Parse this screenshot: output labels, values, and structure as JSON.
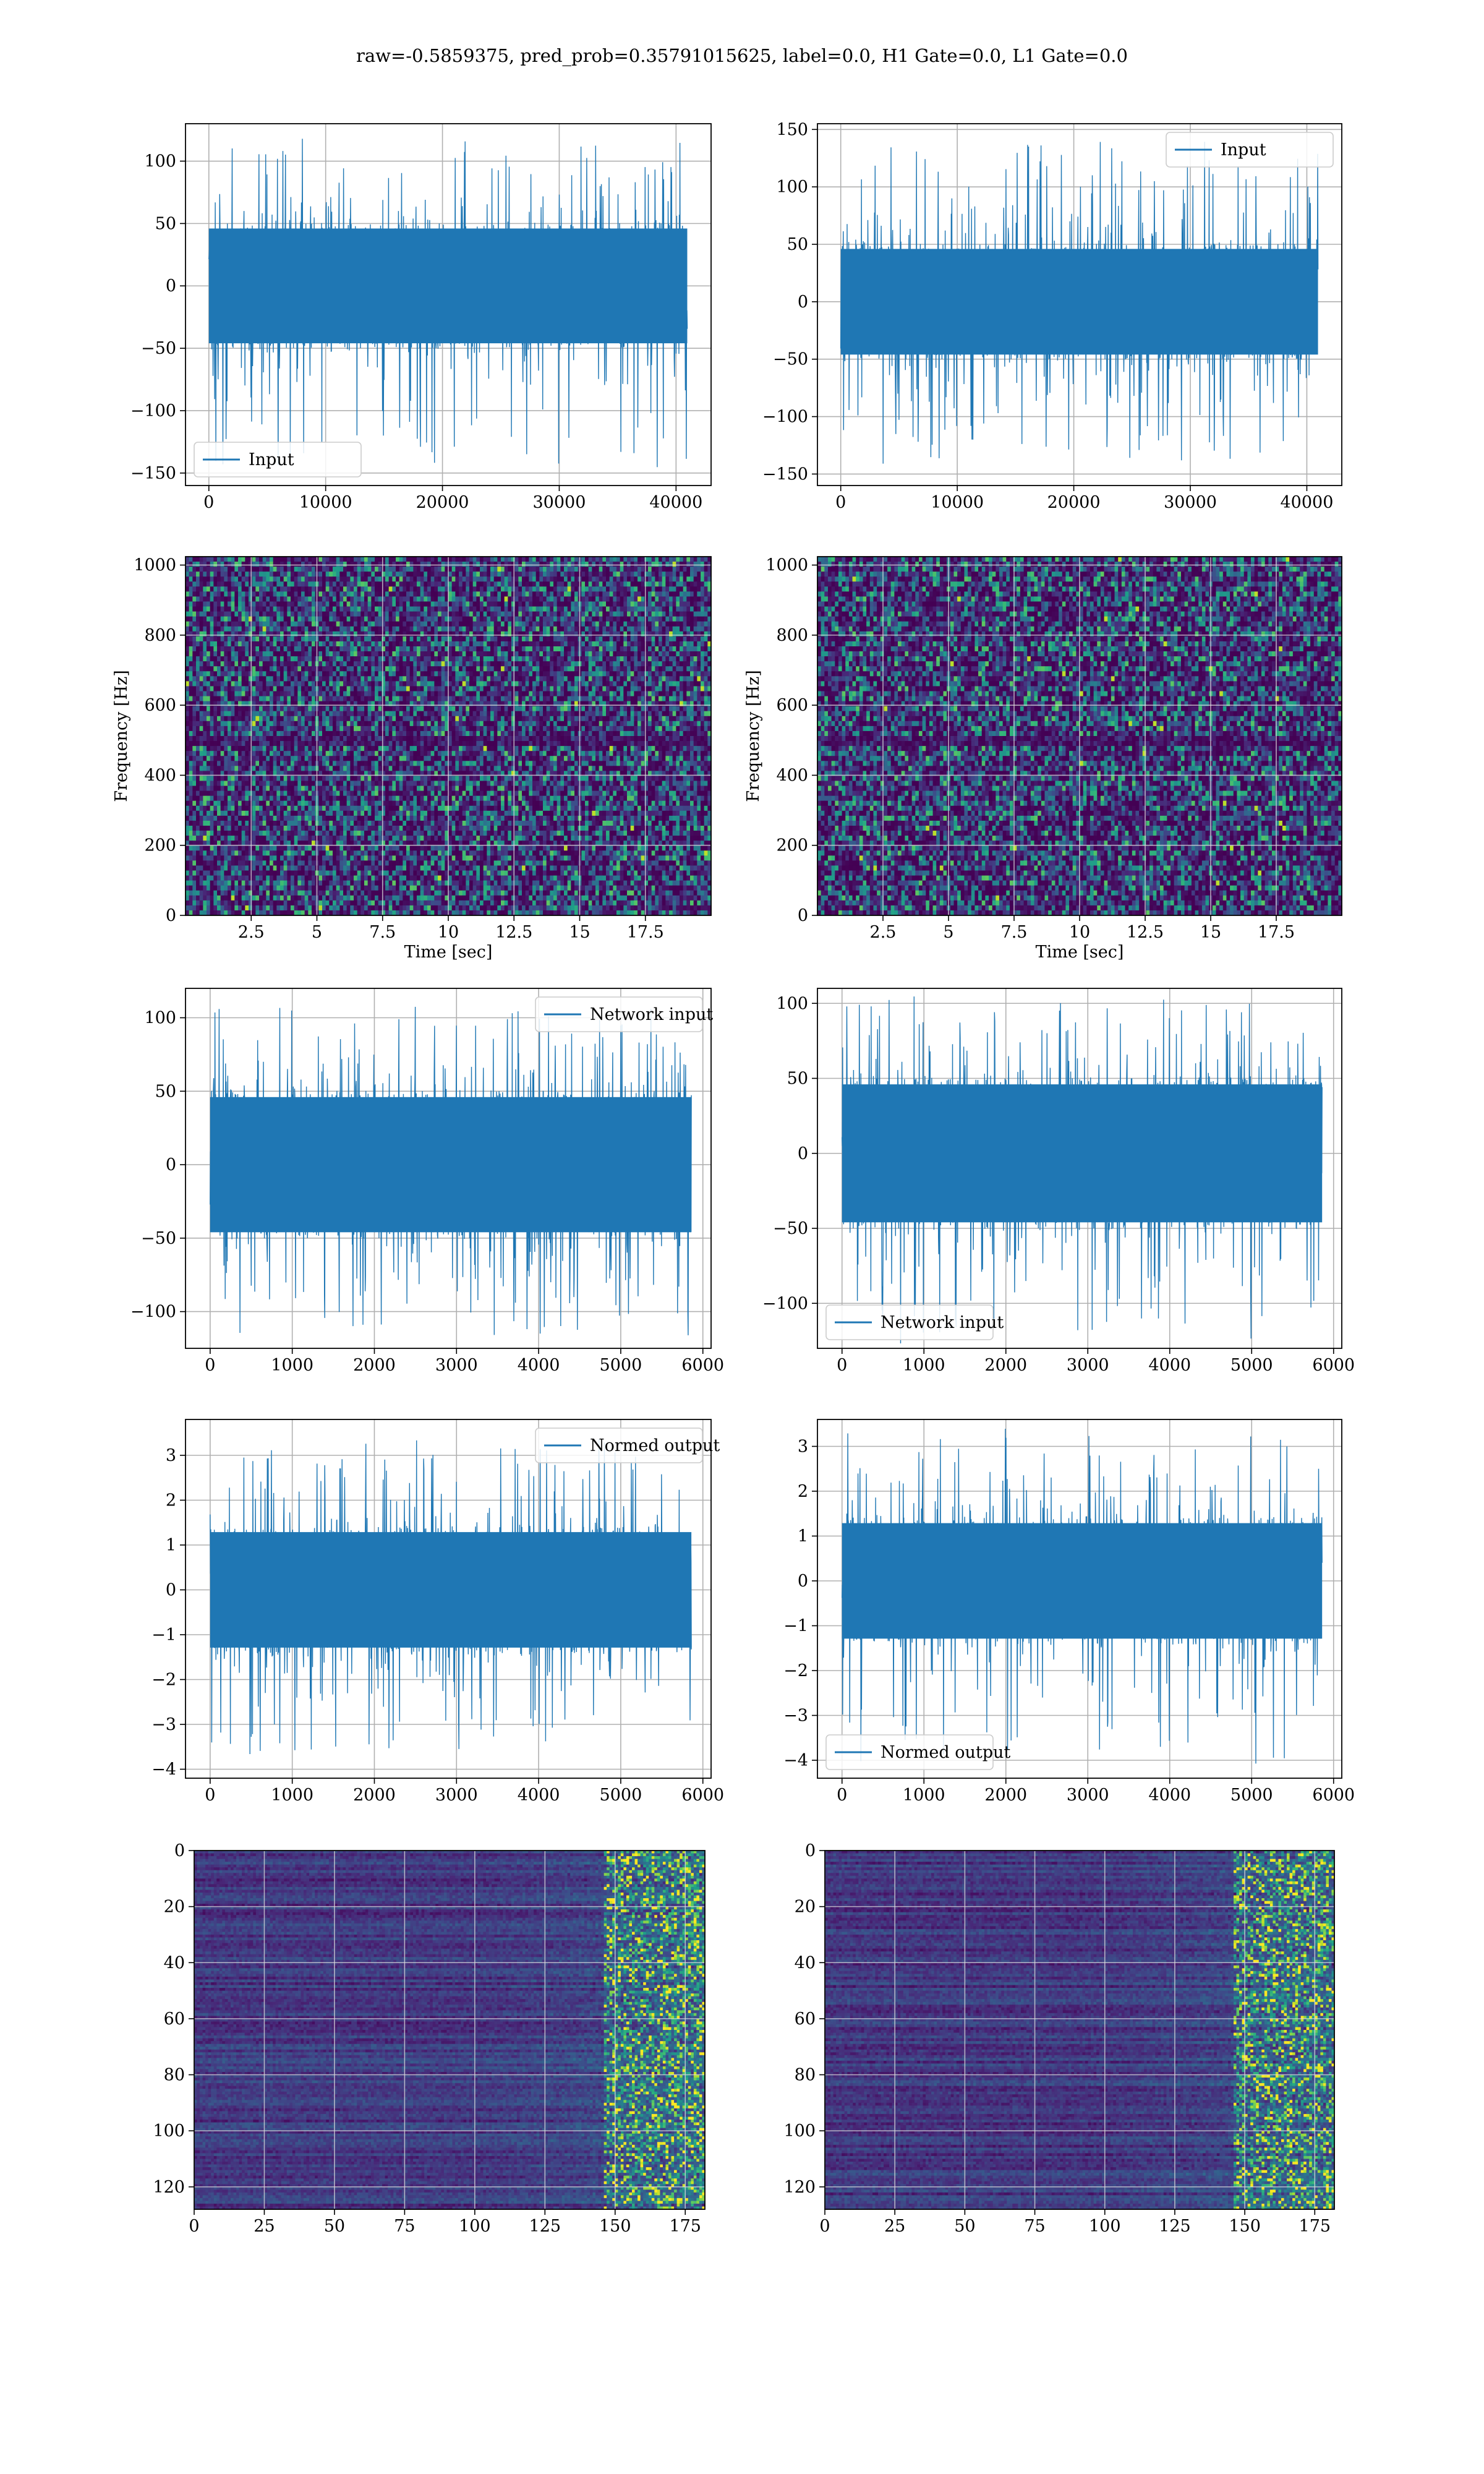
{
  "figure": {
    "title": "raw=-0.5859375, pred_prob=0.35791015625, label=0.0, H1 Gate=0.0, L1 Gate=0.0"
  },
  "colors": {
    "line": "#1f77b4",
    "grid": "#b0b0b0",
    "axes": "#000000",
    "spec_low": "#440154",
    "spec_high": "#fde725"
  },
  "chart_data": [
    {
      "type": "line",
      "row": 0,
      "col": 0,
      "title": "",
      "xlabel": "",
      "ylabel": "",
      "xlim": [
        -2000,
        43000
      ],
      "ylim": [
        -160,
        130
      ],
      "xticks": [
        0,
        10000,
        20000,
        30000,
        40000
      ],
      "yticks": [
        -150,
        -100,
        -50,
        0,
        50,
        100
      ],
      "n_samples": 40960,
      "band": [
        -50,
        50
      ],
      "peak_range": [
        -146,
        118
      ],
      "grid": true,
      "legend": {
        "label": "Input",
        "loc": "lower-left"
      }
    },
    {
      "type": "line",
      "row": 0,
      "col": 1,
      "title": "",
      "xlabel": "",
      "ylabel": "",
      "xlim": [
        -2000,
        43000
      ],
      "ylim": [
        -160,
        155
      ],
      "xticks": [
        0,
        10000,
        20000,
        30000,
        40000
      ],
      "yticks": [
        -150,
        -100,
        -50,
        0,
        50,
        100,
        150
      ],
      "n_samples": 40960,
      "band": [
        -50,
        50
      ],
      "peak_range": [
        -143,
        140
      ],
      "grid": true,
      "legend": {
        "label": "Input",
        "loc": "upper-right"
      }
    },
    {
      "type": "heatmap",
      "row": 1,
      "col": 0,
      "title": "",
      "xlabel": "Time [sec]",
      "ylabel": "Frequency [Hz]",
      "xlim": [
        0,
        20
      ],
      "ylim": [
        0,
        1024
      ],
      "xticks": [
        2.5,
        5.0,
        7.5,
        10.0,
        12.5,
        15.0,
        17.5
      ],
      "yticks": [
        0,
        200,
        400,
        600,
        800,
        1000
      ],
      "colormap": "viridis",
      "grid": true
    },
    {
      "type": "heatmap",
      "row": 1,
      "col": 1,
      "title": "",
      "xlabel": "Time [sec]",
      "ylabel": "Frequency [Hz]",
      "xlim": [
        0,
        20
      ],
      "ylim": [
        0,
        1024
      ],
      "xticks": [
        2.5,
        5.0,
        7.5,
        10.0,
        12.5,
        15.0,
        17.5
      ],
      "yticks": [
        0,
        200,
        400,
        600,
        800,
        1000
      ],
      "colormap": "viridis",
      "grid": true
    },
    {
      "type": "line",
      "row": 2,
      "col": 0,
      "title": "",
      "xlabel": "",
      "ylabel": "",
      "xlim": [
        -300,
        6100
      ],
      "ylim": [
        -125,
        120
      ],
      "xticks": [
        0,
        1000,
        2000,
        3000,
        4000,
        5000,
        6000
      ],
      "yticks": [
        -100,
        -50,
        0,
        50,
        100
      ],
      "n_samples": 5860,
      "band": [
        -50,
        50
      ],
      "peak_range": [
        -117,
        108
      ],
      "grid": true,
      "legend": {
        "label": "Network input",
        "loc": "upper-right"
      }
    },
    {
      "type": "line",
      "row": 2,
      "col": 1,
      "title": "",
      "xlabel": "",
      "ylabel": "",
      "xlim": [
        -300,
        6100
      ],
      "ylim": [
        -130,
        110
      ],
      "xticks": [
        0,
        1000,
        2000,
        3000,
        4000,
        5000,
        6000
      ],
      "yticks": [
        -100,
        -50,
        0,
        50,
        100
      ],
      "n_samples": 5860,
      "band": [
        -50,
        50
      ],
      "peak_range": [
        -127,
        105
      ],
      "grid": true,
      "legend": {
        "label": "Network input",
        "loc": "lower-left"
      }
    },
    {
      "type": "line",
      "row": 3,
      "col": 0,
      "title": "",
      "xlabel": "",
      "ylabel": "",
      "xlim": [
        -300,
        6100
      ],
      "ylim": [
        -4.2,
        3.8
      ],
      "xticks": [
        0,
        1000,
        2000,
        3000,
        4000,
        5000,
        6000
      ],
      "yticks": [
        -4,
        -3,
        -2,
        -1,
        0,
        1,
        2,
        3
      ],
      "n_samples": 5860,
      "band": [
        -1.4,
        1.4
      ],
      "peak_range": [
        -3.7,
        3.4
      ],
      "grid": true,
      "legend": {
        "label": "Normed output",
        "loc": "upper-right"
      }
    },
    {
      "type": "line",
      "row": 3,
      "col": 1,
      "title": "",
      "xlabel": "",
      "ylabel": "",
      "xlim": [
        -300,
        6100
      ],
      "ylim": [
        -4.4,
        3.6
      ],
      "xticks": [
        0,
        1000,
        2000,
        3000,
        4000,
        5000,
        6000
      ],
      "yticks": [
        -4,
        -3,
        -2,
        -1,
        0,
        1,
        2,
        3
      ],
      "n_samples": 5860,
      "band": [
        -1.4,
        1.4
      ],
      "peak_range": [
        -4.1,
        3.4
      ],
      "grid": true,
      "legend": {
        "label": "Normed output",
        "loc": "lower-left"
      }
    },
    {
      "type": "heatmap",
      "row": 4,
      "col": 0,
      "title": "",
      "xlabel": "",
      "ylabel": "",
      "xlim": [
        0,
        182
      ],
      "ylim": [
        128,
        0
      ],
      "xticks": [
        0,
        25,
        50,
        75,
        100,
        125,
        150,
        175
      ],
      "yticks": [
        0,
        20,
        40,
        60,
        80,
        100,
        120
      ],
      "colormap": "viridis",
      "grid": true
    },
    {
      "type": "heatmap",
      "row": 4,
      "col": 1,
      "title": "",
      "xlabel": "",
      "ylabel": "",
      "xlim": [
        0,
        182
      ],
      "ylim": [
        128,
        0
      ],
      "xticks": [
        0,
        25,
        50,
        75,
        100,
        125,
        150,
        175
      ],
      "yticks": [
        0,
        20,
        40,
        60,
        80,
        100,
        120
      ],
      "colormap": "viridis",
      "grid": true
    }
  ]
}
